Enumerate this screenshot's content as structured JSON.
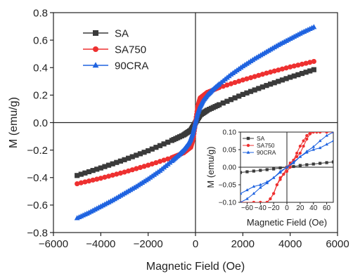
{
  "chart_data": [
    {
      "type": "line",
      "role": "main",
      "xlabel": "Magnetic Field (Oe)",
      "ylabel": "M (emu/g)",
      "xlim": [
        -6000,
        6000
      ],
      "ylim": [
        -0.8,
        0.8
      ],
      "xticks": [
        -6000,
        -4000,
        -2000,
        0,
        2000,
        4000,
        6000
      ],
      "yticks": [
        -0.8,
        -0.6,
        -0.4,
        -0.2,
        0.0,
        0.2,
        0.4,
        0.6,
        0.8
      ],
      "ytick_labels": [
        "-0.8",
        "-0.6",
        "-0.4",
        "-0.2",
        "0.0",
        "0.2",
        "0.4",
        "0.6",
        "0.8"
      ],
      "legend_position": "top-left",
      "grid": false,
      "series": [
        {
          "name": "SA",
          "color": "#3a3a3a",
          "marker": "square",
          "x": [
            -5000,
            -4000,
            -3000,
            -2000,
            -1000,
            -500,
            -200,
            0,
            200,
            500,
            1000,
            2000,
            3000,
            4000,
            5000
          ],
          "y": [
            -0.385,
            -0.33,
            -0.27,
            -0.205,
            -0.13,
            -0.09,
            -0.055,
            0.0,
            0.055,
            0.09,
            0.13,
            0.205,
            0.27,
            0.33,
            0.385
          ]
        },
        {
          "name": "SA750",
          "color": "#ee3030",
          "marker": "circle",
          "x": [
            -5000,
            -4000,
            -3000,
            -2000,
            -1000,
            -500,
            -200,
            -100,
            0,
            100,
            200,
            500,
            1000,
            2000,
            3000,
            4000,
            5000
          ],
          "y": [
            -0.445,
            -0.405,
            -0.36,
            -0.31,
            -0.255,
            -0.22,
            -0.18,
            -0.12,
            0.0,
            0.12,
            0.18,
            0.22,
            0.255,
            0.31,
            0.36,
            0.405,
            0.445
          ]
        },
        {
          "name": "90CRA",
          "color": "#1f63e0",
          "marker": "triangle",
          "x": [
            -5000,
            -4500,
            -4000,
            -3500,
            -3000,
            -2500,
            -2000,
            -1500,
            -1000,
            -700,
            -500,
            -300,
            -200,
            -100,
            0,
            100,
            200,
            300,
            500,
            700,
            1000,
            1500,
            2000,
            2500,
            3000,
            3500,
            4000,
            4500,
            5000
          ],
          "y": [
            -0.695,
            -0.655,
            -0.61,
            -0.565,
            -0.515,
            -0.465,
            -0.41,
            -0.35,
            -0.28,
            -0.235,
            -0.2,
            -0.155,
            -0.12,
            -0.07,
            0.0,
            0.07,
            0.12,
            0.155,
            0.2,
            0.235,
            0.28,
            0.35,
            0.41,
            0.465,
            0.515,
            0.565,
            0.61,
            0.655,
            0.695
          ]
        }
      ]
    },
    {
      "type": "line",
      "role": "inset",
      "xlabel": "Magnetic Field (Oe)",
      "ylabel": "M (emu/g)",
      "xlim": [
        -70,
        70
      ],
      "ylim": [
        -0.1,
        0.1
      ],
      "xticks": [
        -60,
        -40,
        -20,
        0,
        20,
        40,
        60
      ],
      "yticks": [
        -0.1,
        -0.05,
        0.0,
        0.05,
        0.1
      ],
      "ytick_labels": [
        "-0.10",
        "-0.05",
        "0.00",
        "0.05",
        "0.10"
      ],
      "legend_position": "top-left",
      "grid": false,
      "series": [
        {
          "name": "SA",
          "color": "#3a3a3a",
          "marker": "square",
          "x": [
            -70,
            -60,
            -50,
            -40,
            -30,
            -20,
            -10,
            0,
            10,
            20,
            30,
            40,
            50,
            60,
            70
          ],
          "y": [
            -0.015,
            -0.013,
            -0.011,
            -0.009,
            -0.007,
            -0.005,
            -0.002,
            0.0,
            0.002,
            0.005,
            0.007,
            0.009,
            0.011,
            0.013,
            0.015
          ]
        },
        {
          "name": "SA750",
          "color": "#ee3030",
          "marker": "circle",
          "loop": true,
          "x": [
            -70,
            -50,
            -40,
            -30,
            -25,
            -20,
            -15,
            -10,
            -5,
            0,
            5,
            10,
            15,
            20,
            25,
            30,
            35,
            40,
            45,
            50,
            60,
            70
          ],
          "y_descending": [
            -0.1,
            -0.1,
            -0.1,
            -0.1,
            -0.09,
            -0.075,
            -0.05,
            -0.03,
            -0.02,
            0.0,
            0.012,
            0.02,
            0.03,
            0.04,
            0.06,
            0.08,
            0.095,
            0.1,
            0.1,
            0.1,
            0.1,
            0.1
          ],
          "y_ascending": [
            -0.1,
            -0.1,
            -0.1,
            -0.1,
            -0.09,
            -0.075,
            -0.05,
            -0.035,
            -0.02,
            -0.012,
            0.0,
            0.02,
            0.04,
            0.06,
            0.075,
            0.09,
            0.1,
            0.1,
            0.1,
            0.1,
            0.1,
            0.1
          ]
        },
        {
          "name": "90CRA",
          "color": "#1f63e0",
          "marker": "triangle",
          "loop": true,
          "x": [
            -70,
            -60,
            -50,
            -40,
            -30,
            -20,
            -10,
            0,
            10,
            20,
            30,
            40,
            50,
            60,
            70
          ],
          "y_descending": [
            -0.075,
            -0.065,
            -0.055,
            -0.05,
            -0.042,
            -0.03,
            -0.015,
            0.0,
            0.012,
            0.03,
            0.045,
            0.058,
            0.075,
            0.09,
            0.1
          ],
          "y_ascending": [
            -0.1,
            -0.09,
            -0.075,
            -0.058,
            -0.045,
            -0.03,
            -0.012,
            0.0,
            0.015,
            0.03,
            0.042,
            0.05,
            0.055,
            0.065,
            0.075
          ]
        }
      ]
    }
  ]
}
